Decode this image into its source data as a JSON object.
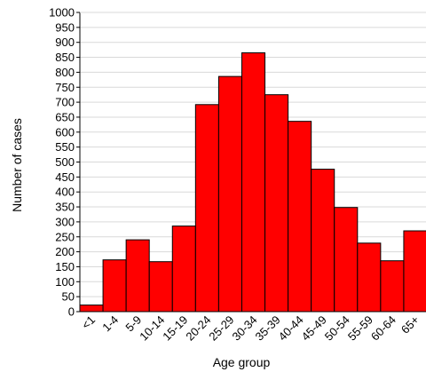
{
  "chart_data": {
    "type": "bar",
    "title": "",
    "xlabel": "Age group",
    "ylabel": "Number of cases",
    "categories": [
      "<1",
      "1-4",
      "5-9",
      "10-14",
      "15-19",
      "20-24",
      "25-29",
      "30-34",
      "35-39",
      "40-44",
      "45-49",
      "50-54",
      "55-59",
      "60-64",
      "65+"
    ],
    "values": [
      22,
      173,
      240,
      167,
      286,
      692,
      786,
      865,
      725,
      636,
      476,
      348,
      229,
      170,
      270
    ],
    "ylim": [
      0,
      1000
    ],
    "yticks": [
      0,
      50,
      100,
      150,
      200,
      250,
      300,
      350,
      400,
      450,
      500,
      550,
      600,
      650,
      700,
      750,
      800,
      850,
      900,
      950,
      1000
    ],
    "grid": true,
    "bar_color": "#ff0000",
    "bar_edge_color": "#000000",
    "grid_color": "#d9d9d9"
  }
}
